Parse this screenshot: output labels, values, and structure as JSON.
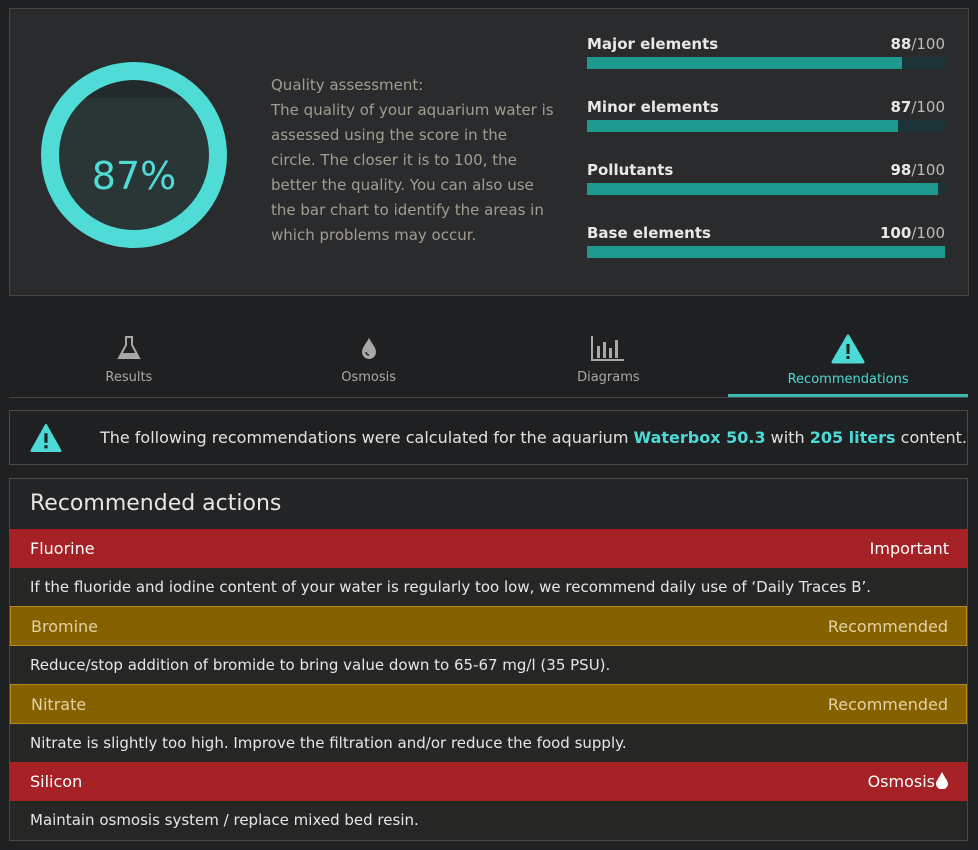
{
  "summary": {
    "score": {
      "value": 87,
      "label": "87%"
    },
    "description_title": "Quality assessment:",
    "description": "The quality of your aquarium water is assessed using the score in the circle. The closer it is to 100, the better the quality. You can also use the bar chart to identify the areas in which problems may occur.",
    "scores": [
      {
        "name": "Major elements",
        "value": 88,
        "max": {
          "value": 100,
          "label": "/100"
        }
      },
      {
        "name": "Minor elements",
        "value": 87,
        "max": {
          "value": 100,
          "label": "/100"
        }
      },
      {
        "name": "Pollutants",
        "value": 98,
        "max": {
          "value": 100,
          "label": "/100"
        }
      },
      {
        "name": "Base elements",
        "value": 100,
        "max": {
          "value": 100,
          "label": "/100"
        }
      }
    ]
  },
  "tabs": [
    {
      "label": "Results",
      "active": false
    },
    {
      "label": "Osmosis",
      "active": false
    },
    {
      "label": "Diagrams",
      "active": false
    },
    {
      "label": "Recommendations",
      "active": true
    }
  ],
  "notice": {
    "parts": [
      "The following recommendations were calculated for the aquarium ",
      "Waterbox 50.3",
      " with ",
      "205 liters",
      " content."
    ]
  },
  "actions": {
    "title": "Recommended actions",
    "items": [
      {
        "name": "Fluorine",
        "priority": "Important",
        "level": "important",
        "text": "If the fluoride and iodine content of your water is regularly too low, we recommend daily use of ‘Daily Traces B’."
      },
      {
        "name": "Bromine",
        "priority": "Recommended",
        "level": "recommended",
        "text": "Reduce/stop addition of bromide to bring value down to 65-67 mg/l (35 PSU)."
      },
      {
        "name": "Nitrate",
        "priority": "Recommended",
        "level": "recommended",
        "text": "Nitrate is slightly too high. Improve the filtration and/or reduce the food supply."
      },
      {
        "name": "Silicon",
        "priority": "Osmosis",
        "level": "osmosis",
        "text": "Maintain osmosis system / replace mixed bed resin."
      }
    ]
  }
}
